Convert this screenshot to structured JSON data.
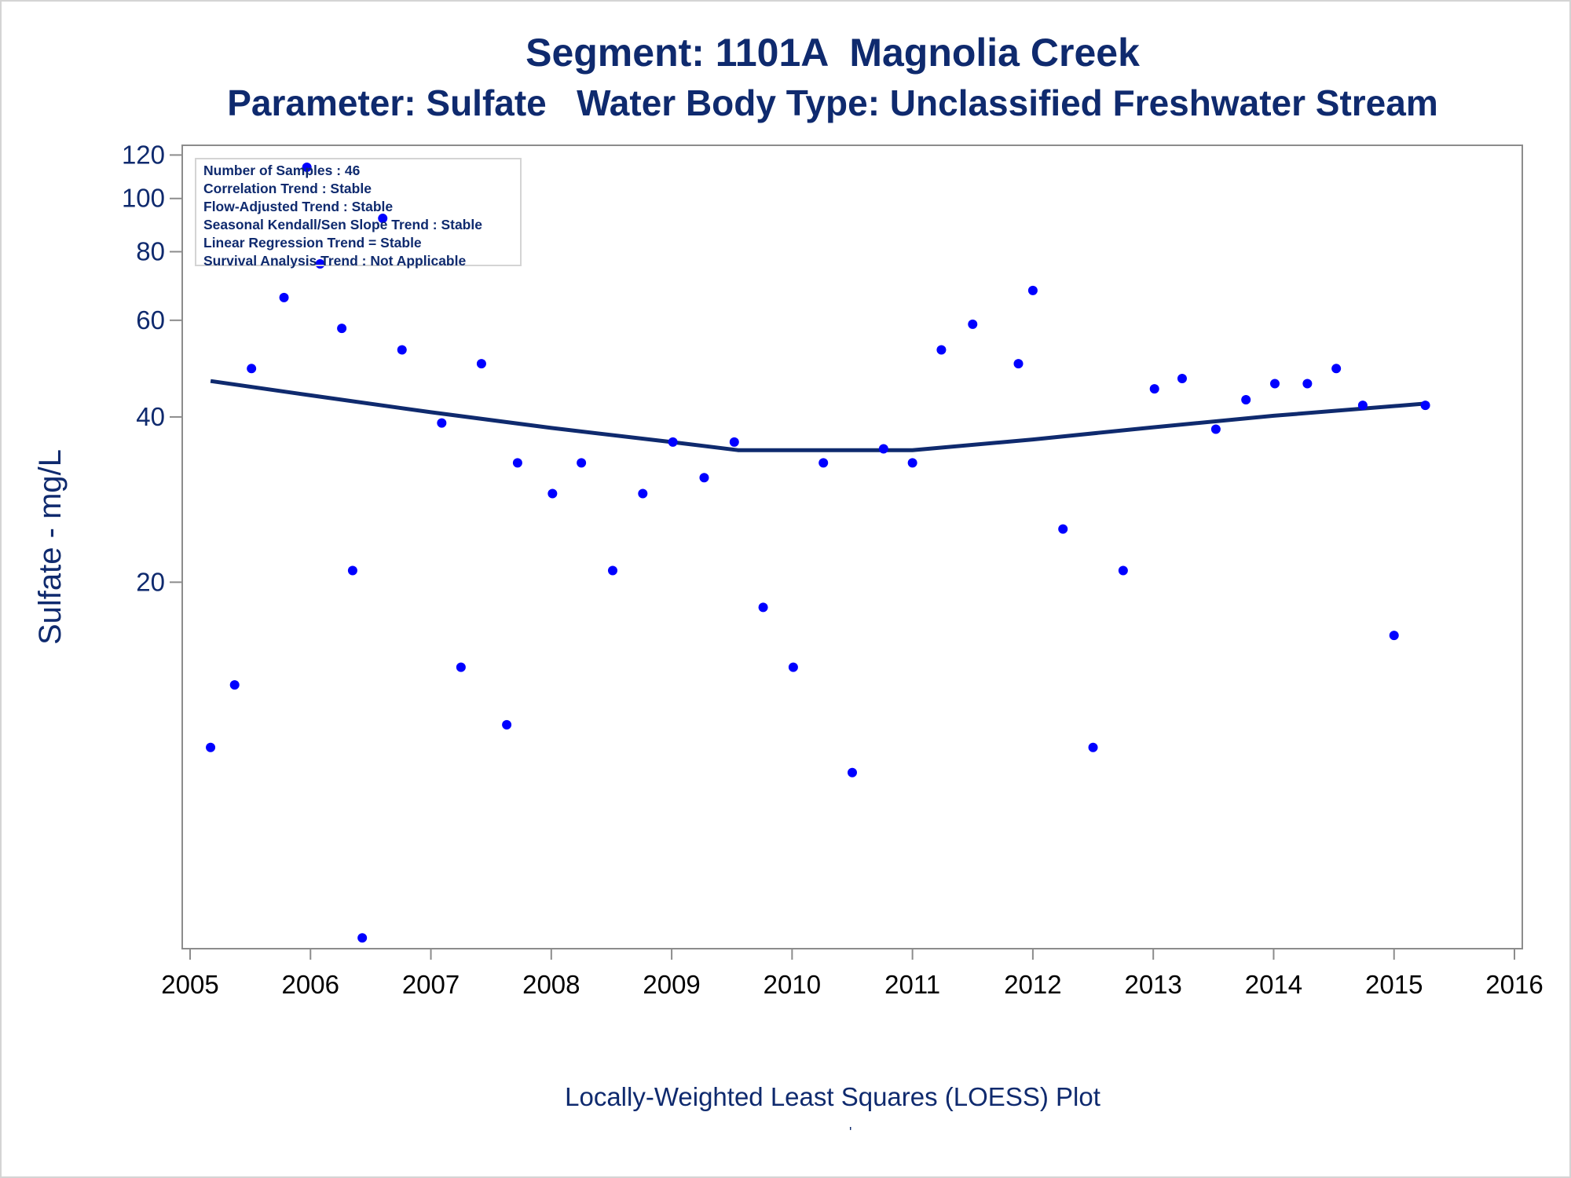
{
  "chart_data": {
    "type": "scatter",
    "title": "Segment: 1101A  Magnolia Creek",
    "subtitle": "Parameter: Sulfate   Water Body Type: Unclassified Freshwater Stream",
    "ylabel": "Sulfate - mg/L",
    "xlabel": "",
    "footnote": "Locally-Weighted Least Squares (LOESS) Plot",
    "footnote_mark": "'",
    "yscale": "log",
    "ylim": [
      4.3,
      125
    ],
    "xlim": [
      2005,
      2016
    ],
    "y_ticks": [
      20,
      40,
      60,
      80,
      100,
      120
    ],
    "x_ticks": [
      2005,
      2006,
      2007,
      2008,
      2009,
      2010,
      2011,
      2012,
      2013,
      2014,
      2015,
      2016
    ],
    "grid": false,
    "stats_box": [
      "Number of Samples : 46",
      "Correlation Trend : Stable",
      "Flow-Adjusted Trend : Stable",
      "Seasonal Kendall/Sen Slope Trend : Stable",
      "Linear Regression Trend = Stable",
      "Survival Analysis Trend : Not Applicable"
    ],
    "series": [
      {
        "kind": "points",
        "color": "#0000ff",
        "points": [
          [
            2005.17,
            10
          ],
          [
            2005.37,
            13
          ],
          [
            2005.51,
            49
          ],
          [
            2005.78,
            66
          ],
          [
            2005.97,
            114
          ],
          [
            2006.08,
            76
          ],
          [
            2006.26,
            58
          ],
          [
            2006.35,
            21
          ],
          [
            2006.43,
            4.5
          ],
          [
            2006.6,
            92
          ],
          [
            2006.76,
            53
          ],
          [
            2007.09,
            39
          ],
          [
            2007.25,
            14
          ],
          [
            2007.42,
            50
          ],
          [
            2007.63,
            11
          ],
          [
            2007.72,
            33
          ],
          [
            2008.01,
            29
          ],
          [
            2008.25,
            33
          ],
          [
            2008.51,
            21
          ],
          [
            2008.76,
            29
          ],
          [
            2009.01,
            36
          ],
          [
            2009.27,
            31
          ],
          [
            2009.52,
            36
          ],
          [
            2009.76,
            18
          ],
          [
            2010.01,
            14
          ],
          [
            2010.26,
            33
          ],
          [
            2010.5,
            9
          ],
          [
            2010.76,
            35
          ],
          [
            2011.0,
            33
          ],
          [
            2011.24,
            53
          ],
          [
            2011.5,
            59
          ],
          [
            2011.88,
            50
          ],
          [
            2012.0,
            68
          ],
          [
            2012.25,
            25
          ],
          [
            2012.5,
            10
          ],
          [
            2012.75,
            21
          ],
          [
            2013.01,
            45
          ],
          [
            2013.24,
            47
          ],
          [
            2013.52,
            38
          ],
          [
            2013.77,
            43
          ],
          [
            2014.01,
            46
          ],
          [
            2014.28,
            46
          ],
          [
            2014.52,
            49
          ],
          [
            2014.74,
            42
          ],
          [
            2015.0,
            16
          ],
          [
            2015.26,
            42
          ]
        ]
      },
      {
        "kind": "line",
        "name": "",
        "color": "#0f2a6e",
        "points": [
          [
            2005.17,
            46.5
          ],
          [
            2006.0,
            43.8
          ],
          [
            2007.0,
            40.8
          ],
          [
            2008.0,
            38.2
          ],
          [
            2009.0,
            36.0
          ],
          [
            2009.55,
            34.8
          ],
          [
            2010.0,
            34.8
          ],
          [
            2011.0,
            34.8
          ],
          [
            2012.0,
            36.4
          ],
          [
            2013.0,
            38.3
          ],
          [
            2014.0,
            40.2
          ],
          [
            2015.26,
            42.3
          ]
        ]
      }
    ]
  }
}
